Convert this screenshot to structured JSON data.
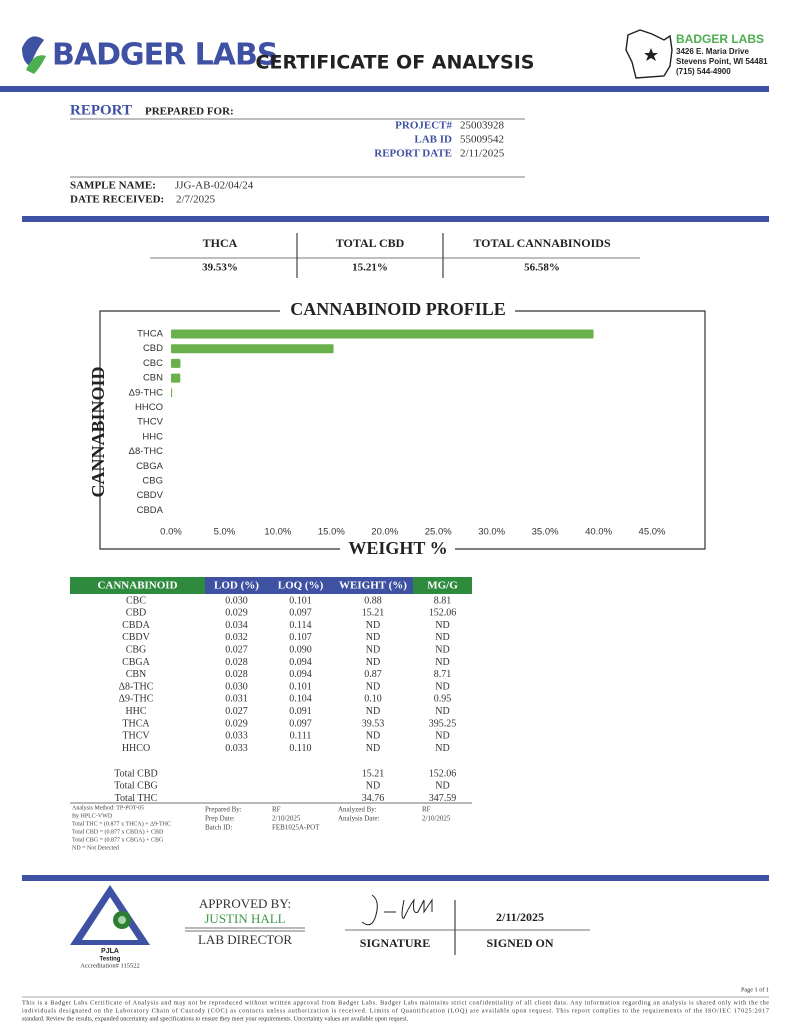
{
  "header": {
    "logo": "BADGER LABS",
    "title": "CERTIFICATE OF ANALYSIS",
    "company": "BADGER LABS",
    "address": [
      "3426 E. Maria Drive",
      "Stevens Point, WI 54481",
      "(715) 544-4900"
    ]
  },
  "report": {
    "heading": "REPORT",
    "prepared_for": "PREPARED FOR:",
    "fields": [
      {
        "label": "PROJECT#",
        "value": "25003928"
      },
      {
        "label": "LAB ID",
        "value": "55009542"
      },
      {
        "label": "REPORT DATE",
        "value": "2/11/2025"
      }
    ],
    "sample": [
      {
        "label": "SAMPLE NAME:",
        "value": "JJG-AB-02/04/24"
      },
      {
        "label": "DATE RECEIVED:",
        "value": "2/7/2025"
      }
    ]
  },
  "summary": {
    "headers": [
      "THCA",
      "TOTAL CBD",
      "TOTAL CANNABINOIDS"
    ],
    "values": [
      "39.53%",
      "15.21%",
      "56.58%"
    ]
  },
  "chart_data": {
    "type": "bar",
    "orientation": "horizontal",
    "title": "CANNABINOID PROFILE",
    "y_label": "CANNABINOID",
    "x_label": "WEIGHT %",
    "categories": [
      "THCA",
      "CBD",
      "CBC",
      "CBN",
      "Δ9-THC",
      "HHCO",
      "THCV",
      "HHC",
      "Δ8-THC",
      "CBGA",
      "CBG",
      "CBDV",
      "CBDA"
    ],
    "values": [
      39.53,
      15.21,
      0.88,
      0.87,
      0.1,
      null,
      null,
      null,
      null,
      null,
      null,
      null,
      null
    ],
    "color": "#6ab04c",
    "xlim": [
      0,
      45
    ],
    "xticks": [
      {
        "value": 0,
        "label": "0.0%"
      },
      {
        "value": 5,
        "label": "5.0%"
      },
      {
        "value": 10,
        "label": "10.0%"
      },
      {
        "value": 15,
        "label": "15.0%"
      },
      {
        "value": 20,
        "label": "20.0%"
      },
      {
        "value": 25,
        "label": "25.0%"
      },
      {
        "value": 30,
        "label": "30.0%"
      },
      {
        "value": 35,
        "label": "35.0%"
      },
      {
        "value": 40,
        "label": "40.0%"
      },
      {
        "value": 45,
        "label": "45.0%"
      }
    ],
    "grid": false
  },
  "results": {
    "headers": [
      "CANNABINOID",
      "LOD (%)",
      "LOQ (%)",
      "WEIGHT (%)",
      "MG/G"
    ],
    "rows": [
      [
        "CBC",
        "0.030",
        "0.101",
        "0.88",
        "8.81"
      ],
      [
        "CBD",
        "0.029",
        "0.097",
        "15.21",
        "152.06"
      ],
      [
        "CBDA",
        "0.034",
        "0.114",
        "ND",
        "ND"
      ],
      [
        "CBDV",
        "0.032",
        "0.107",
        "ND",
        "ND"
      ],
      [
        "CBG",
        "0.027",
        "0.090",
        "ND",
        "ND"
      ],
      [
        "CBGA",
        "0.028",
        "0.094",
        "ND",
        "ND"
      ],
      [
        "CBN",
        "0.028",
        "0.094",
        "0.87",
        "8.71"
      ],
      [
        "Δ8-THC",
        "0.030",
        "0.101",
        "ND",
        "ND"
      ],
      [
        "Δ9-THC",
        "0.031",
        "0.104",
        "0.10",
        "0.95"
      ],
      [
        "HHC",
        "0.027",
        "0.091",
        "ND",
        "ND"
      ],
      [
        "THCA",
        "0.029",
        "0.097",
        "39.53",
        "395.25"
      ],
      [
        "THCV",
        "0.033",
        "0.111",
        "ND",
        "ND"
      ],
      [
        "HHCO",
        "0.033",
        "0.110",
        "ND",
        "ND"
      ]
    ],
    "totals": [
      [
        "Total CBD",
        "15.21",
        "152.06"
      ],
      [
        "Total CBG",
        "ND",
        "ND"
      ],
      [
        "Total THC",
        "34.76",
        "347.59"
      ]
    ]
  },
  "notes": {
    "method": [
      "Analysis Method: TP-POT-05",
      "By HPLC-VWD",
      "Total THC = (0.877 x THCA) + Δ9-THC",
      "Total CBD = (0.877 x CBDA) + CBD",
      "Total CBG = (0.877 x CBGA) + CBG",
      "ND = Not Detected"
    ],
    "prep": [
      {
        "label": "Prepared By:",
        "value": "RF"
      },
      {
        "label": "Prep Date:",
        "value": "2/10/2025"
      },
      {
        "label": "Batch ID:",
        "value": "FEB1025A-POT"
      }
    ],
    "analysis": [
      {
        "label": "Analyzed By:",
        "value": "RF"
      },
      {
        "label": "Analysis Date:",
        "value": "2/10/2025"
      }
    ]
  },
  "approval": {
    "approved_by": "APPROVED BY:",
    "name": "JUSTIN HALL",
    "role": "LAB DIRECTOR",
    "signature": "SIGNATURE",
    "date": "2/11/2025",
    "signed_on": "SIGNED ON"
  },
  "accreditation": {
    "name": "PJLA",
    "type": "Testing",
    "number": "Accreditation# 115522"
  },
  "footer": {
    "page": "Page 1 of 1",
    "disclaimer": [
      "This is a Badger Labs Certificate of Analysis and may not be reproduced without written approval from Badger Labs. Badger Labs maintains strict confidentiality of all client data. Any information regarding an analysis is shared only with the the",
      "individuals designated on the Laboratory Chain of Custody (COC) as contacts unless authorization is received. Limits of Quantification (LOQ) are available upon request. This report complies to the requirements of the ISO/IEC 17025:2017",
      "standard. Review the results, expanded uncertainty and specifications to ensure they meet your requirements. Uncertainty values are available upon request."
    ]
  }
}
